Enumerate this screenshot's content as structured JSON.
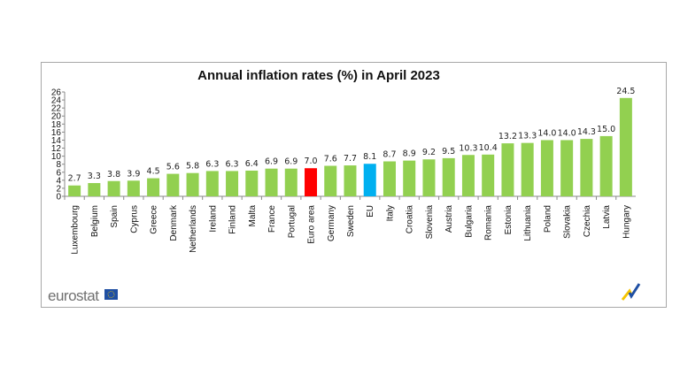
{
  "chart_data": {
    "type": "bar",
    "title": "Annual inflation rates (%) in April 2023",
    "categories": [
      "Luxembourg",
      "Belgium",
      "Spain",
      "Cyprus",
      "Greece",
      "Denmark",
      "Netherlands",
      "Ireland",
      "Finland",
      "Malta",
      "France",
      "Portugal",
      "Euro area",
      "Germany",
      "Sweden",
      "EU",
      "Italy",
      "Croatia",
      "Slovenia",
      "Austria",
      "Bulgaria",
      "Romania",
      "Estonia",
      "Lithuania",
      "Poland",
      "Slovakia",
      "Czechia",
      "Latvia",
      "Hungary"
    ],
    "values": [
      2.7,
      3.3,
      3.8,
      3.9,
      4.5,
      5.6,
      5.8,
      6.3,
      6.3,
      6.4,
      6.9,
      6.9,
      7.0,
      7.6,
      7.7,
      8.1,
      8.7,
      8.9,
      9.2,
      9.5,
      10.3,
      10.4,
      13.2,
      13.3,
      14.0,
      14.0,
      14.3,
      15.0,
      24.5
    ],
    "data_labels": [
      "2.7",
      "3.3",
      "3.8",
      "3.9",
      "4.5",
      "5.6",
      "5.8",
      "6.3",
      "6.3",
      "6.4",
      "6.9",
      "6.9",
      "7.0",
      "7.6",
      "7.7",
      "8.1",
      "8.7",
      "8.9",
      "9.2",
      "9.5",
      "10.3",
      "10.4",
      "13.2",
      "13.3",
      "14.0",
      "14.0",
      "14.3",
      "15.0",
      "24.5"
    ],
    "ylim": [
      0,
      26
    ],
    "yticks": [
      "0",
      "2",
      "4",
      "6",
      "8",
      "10",
      "12",
      "14",
      "16",
      "18",
      "20",
      "22",
      "24",
      "26"
    ],
    "xlabel": "",
    "ylabel": "",
    "grid": false,
    "colors": {
      "default": "#92d050",
      "Euro area": "#ff0000",
      "EU": "#00b0f0"
    }
  },
  "footer": {
    "logo_text": "eurostat"
  }
}
